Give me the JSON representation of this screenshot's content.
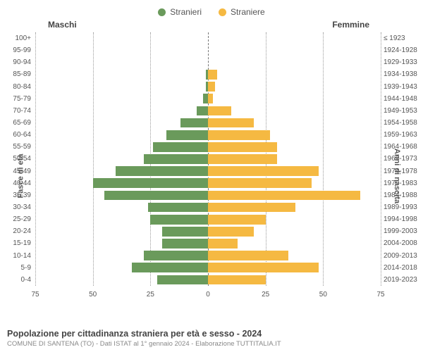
{
  "legend": {
    "male_label": "Stranieri",
    "female_label": "Straniere"
  },
  "headers": {
    "left": "Maschi",
    "right": "Femmine"
  },
  "axes": {
    "left_label": "Fasce di età",
    "right_label": "Anni di nascita",
    "xmax": 75,
    "xticks": [
      75,
      50,
      25,
      0,
      25,
      50,
      75
    ]
  },
  "colors": {
    "male": "#6a9a5b",
    "female": "#f5b942",
    "grid": "#999999",
    "center": "#777777",
    "background": "#ffffff"
  },
  "style": {
    "label_fontsize": 10,
    "legend_fontsize": 12,
    "title_fontsize": 12.5,
    "subtitle_fontsize": 9.5,
    "bar_height_pct": 80,
    "font_family": "Arial"
  },
  "rows": [
    {
      "age": "100+",
      "birth": "≤ 1923",
      "m": 0,
      "f": 0
    },
    {
      "age": "95-99",
      "birth": "1924-1928",
      "m": 0,
      "f": 0
    },
    {
      "age": "90-94",
      "birth": "1929-1933",
      "m": 0,
      "f": 0
    },
    {
      "age": "85-89",
      "birth": "1934-1938",
      "m": 1,
      "f": 4
    },
    {
      "age": "80-84",
      "birth": "1939-1943",
      "m": 1,
      "f": 3
    },
    {
      "age": "75-79",
      "birth": "1944-1948",
      "m": 2,
      "f": 2
    },
    {
      "age": "70-74",
      "birth": "1949-1953",
      "m": 5,
      "f": 10
    },
    {
      "age": "65-69",
      "birth": "1954-1958",
      "m": 12,
      "f": 20
    },
    {
      "age": "60-64",
      "birth": "1959-1963",
      "m": 18,
      "f": 27
    },
    {
      "age": "55-59",
      "birth": "1964-1968",
      "m": 24,
      "f": 30
    },
    {
      "age": "50-54",
      "birth": "1969-1973",
      "m": 28,
      "f": 30
    },
    {
      "age": "45-49",
      "birth": "1974-1978",
      "m": 40,
      "f": 48
    },
    {
      "age": "40-44",
      "birth": "1979-1983",
      "m": 50,
      "f": 45
    },
    {
      "age": "35-39",
      "birth": "1984-1988",
      "m": 45,
      "f": 66
    },
    {
      "age": "30-34",
      "birth": "1989-1993",
      "m": 26,
      "f": 38
    },
    {
      "age": "25-29",
      "birth": "1994-1998",
      "m": 25,
      "f": 25
    },
    {
      "age": "20-24",
      "birth": "1999-2003",
      "m": 20,
      "f": 20
    },
    {
      "age": "15-19",
      "birth": "2004-2008",
      "m": 20,
      "f": 13
    },
    {
      "age": "10-14",
      "birth": "2009-2013",
      "m": 28,
      "f": 35
    },
    {
      "age": "5-9",
      "birth": "2014-2018",
      "m": 33,
      "f": 48
    },
    {
      "age": "0-4",
      "birth": "2019-2023",
      "m": 22,
      "f": 25
    }
  ],
  "footer": {
    "title": "Popolazione per cittadinanza straniera per età e sesso - 2024",
    "subtitle": "COMUNE DI SANTENA (TO) - Dati ISTAT al 1° gennaio 2024 - Elaborazione TUTTITALIA.IT"
  }
}
